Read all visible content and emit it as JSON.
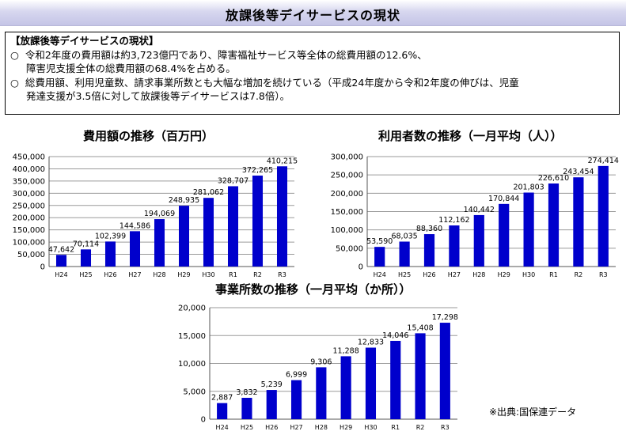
{
  "header": {
    "title": "放課後等デイサービスの現状"
  },
  "summary": {
    "heading": "【放課後等デイサービスの現状】",
    "items": [
      {
        "bullet": "○",
        "lines": [
          "令和2年度の費用額は約3,723億円であり、障害福祉サービス等全体の総費用額の12.6%、",
          "障害児支援全体の総費用額の68.4%を占める。"
        ]
      },
      {
        "bullet": "○",
        "lines": [
          "総費用額、利用児童数、請求事業所数とも大幅な増加を続けている（平成24年度から令和2年度の伸びは、児童",
          "発達支援が3.5倍に対して放課後等デイサービスは7.8倍）。"
        ]
      }
    ]
  },
  "chart_data": [
    {
      "type": "bar",
      "title": "費用額の推移（百万円）",
      "categories": [
        "H24",
        "H25",
        "H26",
        "H27",
        "H28",
        "H29",
        "H30",
        "R1",
        "R2",
        "R3"
      ],
      "values": [
        47642,
        70114,
        102399,
        144586,
        194069,
        248935,
        281062,
        328707,
        372265,
        410215
      ],
      "value_labels": [
        "47,642",
        "70,114",
        "102,399",
        "144,586",
        "194,069",
        "248,935",
        "281,062",
        "328,707",
        "372,265",
        "410,215"
      ],
      "ylim": [
        0,
        450000
      ],
      "yticks": [
        0,
        50000,
        100000,
        150000,
        200000,
        250000,
        300000,
        350000,
        400000,
        450000
      ],
      "ytick_labels": [
        "0",
        "50,000",
        "100,000",
        "150,000",
        "200,000",
        "250,000",
        "300,000",
        "350,000",
        "400,000",
        "450,000"
      ],
      "grid": true,
      "color": "#0000cc"
    },
    {
      "type": "bar",
      "title": "利用者数の推移（一月平均（人））",
      "categories": [
        "H24",
        "H25",
        "H26",
        "H27",
        "H28",
        "H29",
        "H30",
        "R1",
        "R2",
        "R3"
      ],
      "values": [
        53590,
        68035,
        88360,
        112162,
        140442,
        170844,
        201803,
        226610,
        243454,
        274414
      ],
      "value_labels": [
        "53,590",
        "68,035",
        "88,360",
        "112,162",
        "140,442",
        "170,844",
        "201,803",
        "226,610",
        "243,454",
        "274,414"
      ],
      "ylim": [
        0,
        300000
      ],
      "yticks": [
        0,
        50000,
        100000,
        150000,
        200000,
        250000,
        300000
      ],
      "ytick_labels": [
        "0",
        "50,000",
        "100,000",
        "150,000",
        "200,000",
        "250,000",
        "300,000"
      ],
      "grid": true,
      "color": "#0000cc"
    },
    {
      "type": "bar",
      "title": "事業所数の推移（一月平均（か所））",
      "categories": [
        "H24",
        "H25",
        "H26",
        "H27",
        "H28",
        "H29",
        "H30",
        "R1",
        "R2",
        "R3"
      ],
      "values": [
        2887,
        3832,
        5239,
        6999,
        9306,
        11288,
        12833,
        14046,
        15408,
        17298
      ],
      "value_labels": [
        "2,887",
        "3,832",
        "5,239",
        "6,999",
        "9,306",
        "11,288",
        "12,833",
        "14,046",
        "15,408",
        "17,298"
      ],
      "ylim": [
        0,
        20000
      ],
      "yticks": [
        0,
        5000,
        10000,
        15000,
        20000
      ],
      "ytick_labels": [
        "0",
        "5,000",
        "10,000",
        "15,000",
        "20,000"
      ],
      "grid": true,
      "color": "#0000cc"
    }
  ],
  "source": {
    "text": "※出典:国保連データ"
  }
}
